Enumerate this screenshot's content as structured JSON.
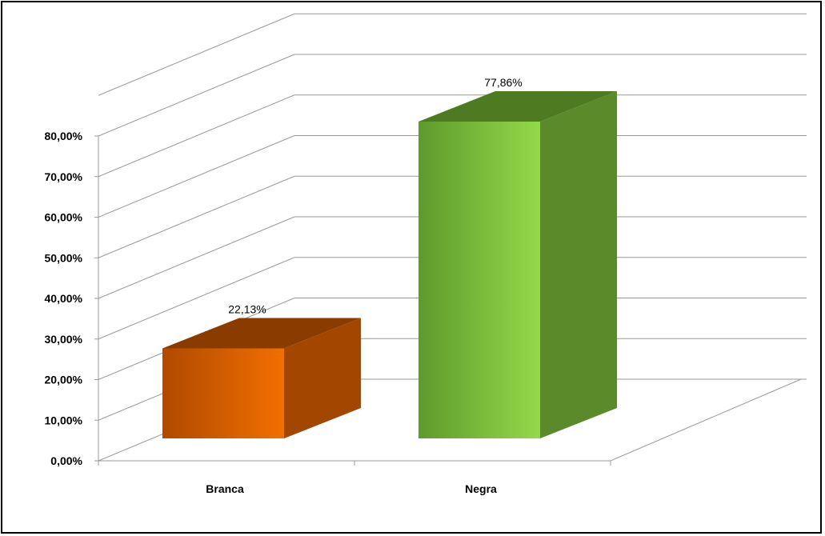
{
  "chart_data": {
    "type": "bar",
    "categories": [
      "Branca",
      "Negra"
    ],
    "values": [
      22.13,
      77.86
    ],
    "data_labels": [
      "22,13%",
      "77,86%"
    ],
    "y_tick_labels": [
      "0,00%",
      "10,00%",
      "20,00%",
      "30,00%",
      "40,00%",
      "50,00%",
      "60,00%",
      "70,00%",
      "80,00%"
    ],
    "ylim": [
      0,
      80
    ],
    "grid": true,
    "legend": "none",
    "style": "3d",
    "colors": {
      "Branca": {
        "front_light": "#F26F00",
        "front_dark": "#B04A00",
        "side": "#A34700",
        "top": "#8A3C00"
      },
      "Negra": {
        "front_light": "#94D94A",
        "front_dark": "#5E9A2C",
        "side": "#5B8A2B",
        "top": "#4E7A22"
      }
    }
  }
}
